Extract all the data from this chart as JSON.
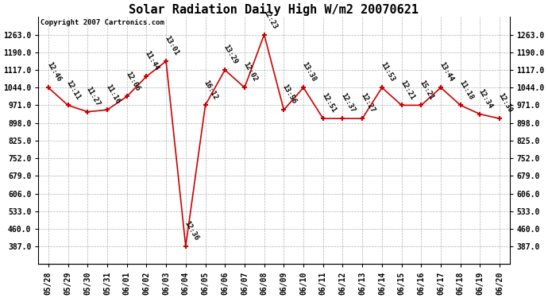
{
  "title": "Solar Radiation Daily High W/m2 20070621",
  "copyright": "Copyright 2007 Cartronics.com",
  "dates": [
    "05/28",
    "05/29",
    "05/30",
    "05/31",
    "06/01",
    "06/02",
    "06/03",
    "06/04",
    "06/05",
    "06/06",
    "06/07",
    "06/08",
    "06/09",
    "06/10",
    "06/11",
    "06/12",
    "06/13",
    "06/14",
    "06/15",
    "06/16",
    "06/17",
    "06/18",
    "06/19",
    "06/20"
  ],
  "values": [
    1044,
    971,
    944,
    952,
    1007,
    1090,
    1153,
    388,
    971,
    1117,
    1044,
    1263,
    952,
    1044,
    916,
    916,
    916,
    1044,
    971,
    971,
    1044,
    971,
    934,
    916
  ],
  "times": [
    "12:46",
    "12:11",
    "11:27",
    "11:16",
    "12:06",
    "11:44",
    "13:01",
    "12:36",
    "16:12",
    "13:29",
    "12:02",
    "12:23",
    "13:56",
    "13:38",
    "12:51",
    "12:37",
    "12:27",
    "11:53",
    "12:21",
    "15:21",
    "13:44",
    "11:18",
    "12:34",
    "12:30"
  ],
  "line_color": "#cc0000",
  "marker_color": "#cc0000",
  "bg_color": "#ffffff",
  "plot_bg_color": "#ffffff",
  "grid_color": "#b0b0b0",
  "title_fontsize": 11,
  "tick_fontsize": 7,
  "annotation_fontsize": 6.5,
  "copyright_fontsize": 6.5,
  "ylim": [
    314.0,
    1336.0
  ],
  "yticks": [
    387.0,
    460.0,
    533.0,
    606.0,
    679.0,
    752.0,
    825.0,
    898.0,
    971.0,
    1044.0,
    1117.0,
    1190.0,
    1263.0
  ]
}
